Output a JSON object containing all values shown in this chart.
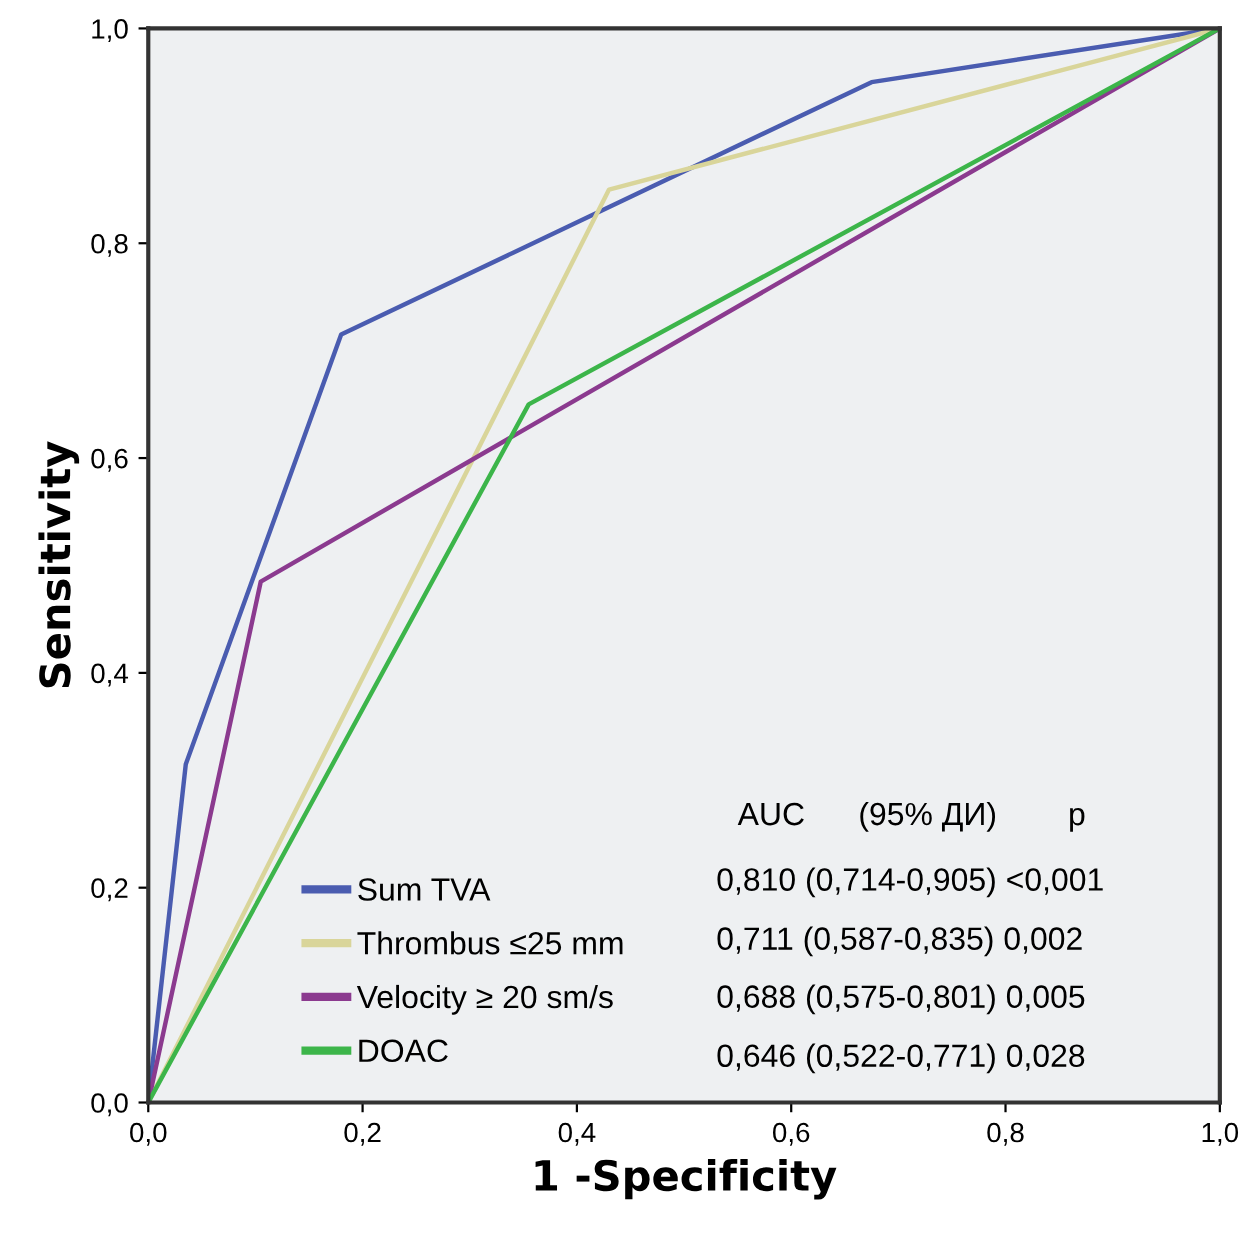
{
  "chart_data": {
    "type": "line",
    "xlabel": "1 -Specificity",
    "ylabel": "Sensitivity",
    "series": [
      {
        "name": "Sum TVA",
        "color": "#4a5cb0",
        "x": [
          0,
          0.035,
          0.18,
          0.675,
          1
        ],
        "values": [
          0,
          0.315,
          0.715,
          0.95,
          1
        ]
      },
      {
        "name": "Thrombus ≤25 mm",
        "color": "#d9d59a",
        "x": [
          0,
          0.43,
          1
        ],
        "values": [
          0,
          0.85,
          1
        ]
      },
      {
        "name": "Velocity ≥ 20 sm/s",
        "color": "#8b3a8f",
        "x": [
          0,
          0.105,
          1
        ],
        "values": [
          0,
          0.485,
          1
        ]
      },
      {
        "name": "DOAC",
        "color": "#3cb54a",
        "x": [
          0,
          0.355,
          1
        ],
        "values": [
          0,
          0.65,
          1
        ]
      }
    ],
    "xlim": [
      0,
      1
    ],
    "ylim": [
      0,
      1
    ],
    "xticks": [
      {
        "value": 0,
        "label": "0,0"
      },
      {
        "value": 0.2,
        "label": "0,2"
      },
      {
        "value": 0.4,
        "label": "0,4"
      },
      {
        "value": 0.6,
        "label": "0,6"
      },
      {
        "value": 0.8,
        "label": "0,8"
      },
      {
        "value": 1,
        "label": "1,0"
      }
    ],
    "yticks": [
      {
        "value": 0,
        "label": "0,0"
      },
      {
        "value": 0.2,
        "label": "0,2"
      },
      {
        "value": 0.4,
        "label": "0,4"
      },
      {
        "value": 0.6,
        "label": "0,6"
      },
      {
        "value": 0.8,
        "label": "0,8"
      },
      {
        "value": 1,
        "label": "1,0"
      }
    ],
    "annotations": [
      "AUC      (95% ДИ)        p",
      "0,810 (0,714-0,905) <0,001",
      "0,711 (0,587-0,835) 0,002",
      "0,688 (0,575-0,801) 0,005",
      "0,646 (0,522-0,771) 0,028"
    ],
    "legend": "bottom",
    "grid": false,
    "marker": "none",
    "line_style": "solid"
  }
}
